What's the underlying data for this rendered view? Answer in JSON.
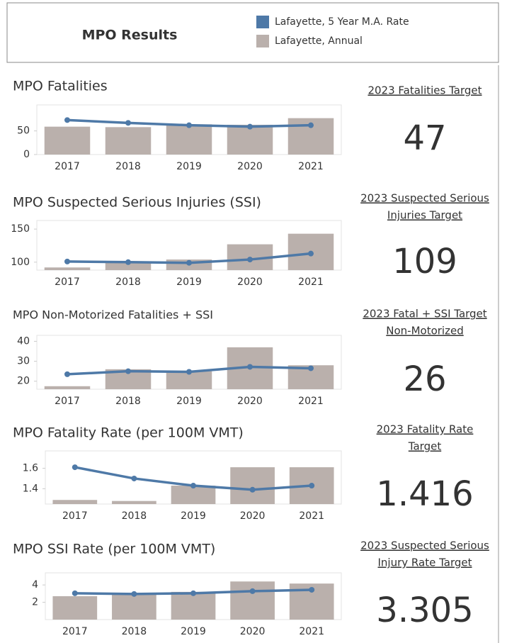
{
  "header": {
    "title": "MPO Results"
  },
  "legend": [
    {
      "name": "Lafayette, 5 Year M.A. Rate",
      "color": "#4e79a7"
    },
    {
      "name": "Lafayette, Annual",
      "color": "#bab0ac"
    }
  ],
  "chart_data": [
    {
      "type": "combo",
      "title": "MPO Fatalities",
      "categories": [
        "2017",
        "2018",
        "2019",
        "2020",
        "2021"
      ],
      "bars": [
        59,
        58,
        64,
        63,
        77
      ],
      "line": [
        73,
        67,
        62,
        59,
        62
      ],
      "ylim": [
        0,
        105
      ],
      "yticks": [
        0,
        50
      ],
      "target_label": [
        "2023 Fatalities Target"
      ],
      "target": 47
    },
    {
      "type": "combo",
      "title": "MPO Suspected Serious Injuries (SSI)",
      "categories": [
        "2017",
        "2018",
        "2019",
        "2020",
        "2021"
      ],
      "bars": [
        92,
        101,
        104,
        127,
        143
      ],
      "line": [
        101,
        100,
        99,
        104,
        113
      ],
      "ylim": [
        88,
        163
      ],
      "yticks": [
        100,
        150
      ],
      "target_label": [
        "2023 Suspected Serious",
        "Injuries Target"
      ],
      "target": 109
    },
    {
      "type": "combo",
      "title": "MPO Non-Motorized Fatalities + SSI",
      "categories": [
        "2017",
        "2018",
        "2019",
        "2020",
        "2021"
      ],
      "bars": [
        17.5,
        26,
        25,
        37,
        28
      ],
      "line": [
        23.5,
        25,
        24.7,
        27.2,
        26.5
      ],
      "ylim": [
        16,
        43
      ],
      "yticks": [
        20,
        30,
        40
      ],
      "target_label": [
        "2023 Fatal + SSI Target",
        "Non-Motorized"
      ],
      "target": 26
    },
    {
      "type": "combo",
      "title": "MPO Fatality Rate (per 100M VMT)",
      "categories": [
        "2017",
        "2018",
        "2019",
        "2020",
        "2021"
      ],
      "bars": [
        1.29,
        1.28,
        1.43,
        1.61,
        1.61
      ],
      "line": [
        1.61,
        1.5,
        1.43,
        1.39,
        1.43
      ],
      "ylim": [
        1.25,
        1.77
      ],
      "yticks": [
        1.4,
        1.6
      ],
      "target_label": [
        "2023 Fatality Rate",
        "Target"
      ],
      "target": 1.416
    },
    {
      "type": "combo",
      "title": "MPO SSI Rate (per 100M VMT)",
      "categories": [
        "2017",
        "2018",
        "2019",
        "2020",
        "2021"
      ],
      "bars": [
        2.7,
        2.96,
        3.2,
        4.4,
        4.16
      ],
      "line": [
        3.04,
        2.96,
        3.04,
        3.28,
        3.44
      ],
      "ylim": [
        0,
        5.4
      ],
      "yticks": [
        2,
        4
      ],
      "target_label": [
        "2023 Suspected Serious",
        "Injury Rate Target"
      ],
      "target": 3.305
    }
  ]
}
